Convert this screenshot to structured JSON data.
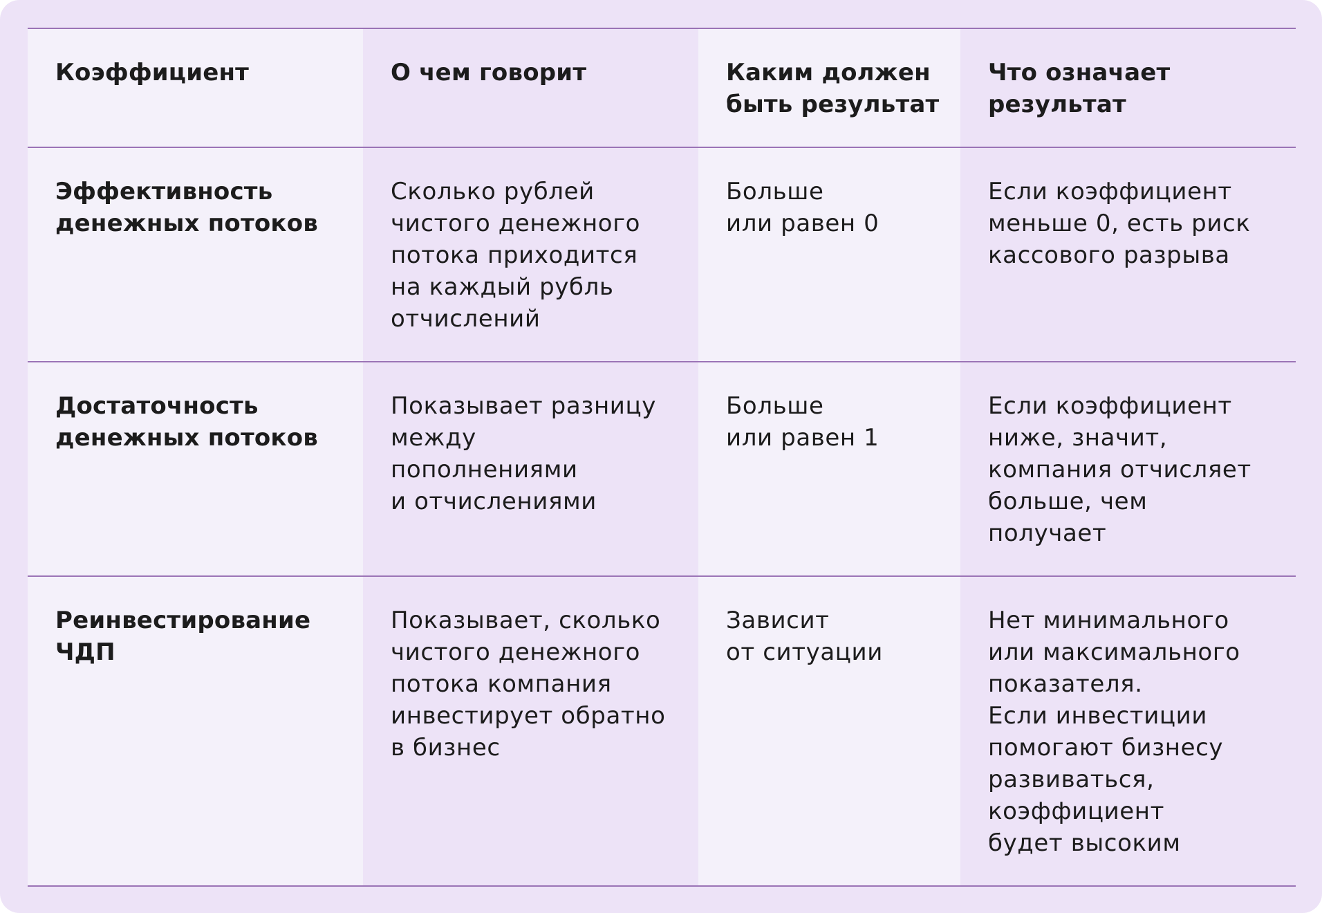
{
  "table": {
    "headers": [
      "Коэффициент",
      "О чем говорит",
      "Каким должен\nбыть результат",
      "Что означает\nрезультат"
    ],
    "rows": [
      {
        "name": "Эффективность\nденежных потоков",
        "meaning": "Сколько рублей\nчистого денежного\nпотока приходится\nна каждый рубль\nотчислений",
        "expected": "Больше\nили равен 0",
        "interpretation": "Если коэффициент\nменьше 0, есть риск\nкассового разрыва"
      },
      {
        "name": "Достаточность\nденежных потоков",
        "meaning": "Показывает разницу\nмежду\nпополнениями\nи отчислениями",
        "expected": "Больше\nили равен 1",
        "interpretation": "Если коэффициент\nниже, значит,\nкомпания отчисляет\nбольше, чем\nполучает"
      },
      {
        "name": "Реинвестирование\nЧДП",
        "meaning": "Показывает, сколько\nчистого денежного\nпотока компания\nинвестирует обратно\nв бизнес",
        "expected": "Зависит\nот ситуации",
        "interpretation": "Нет минимального\nили максимального\nпоказателя.\nЕсли инвестиции\nпомогают бизнесу\nразвиваться,\nкоэффициент\nбудет высоким"
      }
    ]
  },
  "colors": {
    "card_background": "#ede3f7",
    "light_column": "#f4f1fa",
    "divider": "#9b74b6",
    "text": "#1c1c1c"
  }
}
